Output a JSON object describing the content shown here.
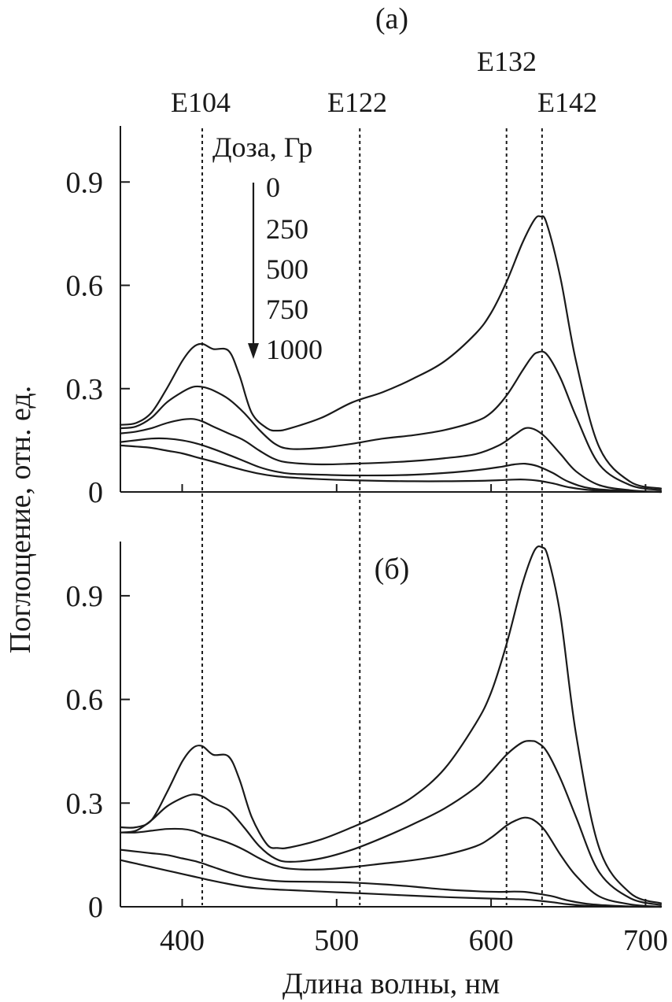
{
  "chart_data": {
    "type": "line",
    "ylabel": "Поглощение, отн. ед.",
    "xlabel": "Длина волны, нм",
    "xlim": [
      360,
      710
    ],
    "x_ticks": [
      400,
      500,
      600,
      700
    ],
    "x_tick_labels": [
      "400",
      "500",
      "600",
      "700"
    ],
    "reference_lines": [
      {
        "label": "E104",
        "x": 413
      },
      {
        "label": "E122",
        "x": 515
      },
      {
        "label": "E132",
        "x": 610
      },
      {
        "label": "E142",
        "x": 633
      }
    ],
    "legend": {
      "title": "Доза, Гр",
      "entries": [
        "0",
        "250",
        "500",
        "750",
        "1000"
      ]
    },
    "panels": [
      {
        "id": "a",
        "title": "(a)",
        "ylim": [
          0,
          1.05
        ],
        "y_ticks": [
          0,
          0.3,
          0.6,
          0.9
        ],
        "y_tick_labels": [
          "0",
          "0.3",
          "0.6",
          "0.9"
        ],
        "series": [
          {
            "name": "0",
            "x": [
              360,
              370,
              380,
              390,
              400,
              407,
              413,
              420,
              430,
              437,
              445,
              455,
              462,
              470,
              490,
              510,
              530,
              550,
              570,
              590,
              600,
              610,
              620,
              628,
              632,
              636,
              645,
              655,
              670,
              690,
              710
            ],
            "y": [
              0.195,
              0.2,
              0.23,
              0.3,
              0.38,
              0.42,
              0.43,
              0.415,
              0.41,
              0.34,
              0.23,
              0.185,
              0.178,
              0.185,
              0.215,
              0.26,
              0.29,
              0.33,
              0.38,
              0.46,
              0.52,
              0.61,
              0.72,
              0.79,
              0.8,
              0.78,
              0.62,
              0.38,
              0.13,
              0.03,
              0.01
            ]
          },
          {
            "name": "250",
            "x": [
              360,
              370,
              380,
              390,
              400,
              407,
              413,
              420,
              430,
              440,
              450,
              460,
              470,
              490,
              510,
              530,
              550,
              570,
              590,
              600,
              610,
              620,
              626,
              630,
              636,
              645,
              655,
              670,
              690,
              710
            ],
            "y": [
              0.185,
              0.19,
              0.215,
              0.26,
              0.29,
              0.305,
              0.305,
              0.295,
              0.27,
              0.23,
              0.18,
              0.14,
              0.125,
              0.128,
              0.14,
              0.155,
              0.165,
              0.18,
              0.205,
              0.23,
              0.28,
              0.35,
              0.39,
              0.405,
              0.4,
              0.33,
              0.22,
              0.08,
              0.02,
              0.005
            ]
          },
          {
            "name": "500",
            "x": [
              360,
              370,
              380,
              390,
              400,
              407,
              413,
              420,
              430,
              440,
              450,
              460,
              470,
              490,
              510,
              530,
              550,
              570,
              590,
              605,
              615,
              622,
              628,
              635,
              645,
              655,
              670,
              690,
              710
            ],
            "y": [
              0.17,
              0.175,
              0.185,
              0.2,
              0.21,
              0.212,
              0.205,
              0.19,
              0.17,
              0.15,
              0.12,
              0.095,
              0.085,
              0.08,
              0.082,
              0.085,
              0.09,
              0.098,
              0.11,
              0.135,
              0.165,
              0.185,
              0.182,
              0.16,
              0.11,
              0.06,
              0.02,
              0.005,
              0.0
            ]
          },
          {
            "name": "750",
            "x": [
              360,
              370,
              380,
              390,
              400,
              410,
              420,
              430,
              440,
              450,
              460,
              470,
              490,
              510,
              530,
              550,
              570,
              590,
              605,
              615,
              622,
              630,
              640,
              650,
              665,
              690,
              710
            ],
            "y": [
              0.145,
              0.15,
              0.155,
              0.155,
              0.15,
              0.14,
              0.125,
              0.108,
              0.09,
              0.072,
              0.06,
              0.053,
              0.05,
              0.048,
              0.048,
              0.05,
              0.055,
              0.063,
              0.072,
              0.08,
              0.082,
              0.075,
              0.055,
              0.03,
              0.01,
              0.003,
              0.0
            ]
          },
          {
            "name": "1000",
            "x": [
              360,
              370,
              380,
              390,
              400,
              410,
              420,
              430,
              440,
              450,
              460,
              470,
              490,
              510,
              530,
              550,
              570,
              590,
              605,
              615,
              622,
              630,
              640,
              650,
              665,
              690,
              710
            ],
            "y": [
              0.135,
              0.132,
              0.128,
              0.12,
              0.112,
              0.1,
              0.088,
              0.075,
              0.063,
              0.053,
              0.046,
              0.042,
              0.037,
              0.034,
              0.032,
              0.031,
              0.031,
              0.032,
              0.034,
              0.036,
              0.036,
              0.033,
              0.025,
              0.014,
              0.005,
              0.001,
              0.0
            ]
          }
        ]
      },
      {
        "id": "b",
        "title": "(б)",
        "ylim": [
          0,
          1.05
        ],
        "y_ticks": [
          0,
          0.3,
          0.6,
          0.9
        ],
        "y_tick_labels": [
          "0",
          "0.3",
          "0.6",
          "0.9"
        ],
        "series": [
          {
            "name": "0",
            "x": [
              360,
              370,
              380,
              390,
              400,
              407,
              413,
              420,
              430,
              437,
              445,
              455,
              462,
              470,
              490,
              510,
              530,
              550,
              570,
              590,
              600,
              610,
              620,
              628,
              633,
              637,
              645,
              655,
              670,
              690,
              710
            ],
            "y": [
              0.23,
              0.23,
              0.25,
              0.33,
              0.42,
              0.46,
              0.465,
              0.44,
              0.435,
              0.37,
              0.26,
              0.18,
              0.17,
              0.172,
              0.195,
              0.23,
              0.27,
              0.32,
              0.4,
              0.53,
              0.62,
              0.76,
              0.93,
              1.03,
              1.04,
              1.01,
              0.84,
              0.5,
              0.17,
              0.04,
              0.01
            ]
          },
          {
            "name": "250",
            "x": [
              360,
              370,
              380,
              390,
              400,
              407,
              413,
              420,
              430,
              440,
              450,
              460,
              470,
              490,
              510,
              530,
              550,
              570,
              590,
              600,
              610,
              620,
              626,
              630,
              636,
              645,
              655,
              670,
              690,
              710
            ],
            "y": [
              0.215,
              0.22,
              0.25,
              0.29,
              0.315,
              0.325,
              0.32,
              0.3,
              0.28,
              0.23,
              0.175,
              0.14,
              0.13,
              0.14,
              0.165,
              0.2,
              0.24,
              0.285,
              0.345,
              0.39,
              0.44,
              0.475,
              0.48,
              0.475,
              0.45,
              0.37,
              0.26,
              0.1,
              0.025,
              0.005
            ]
          },
          {
            "name": "500",
            "x": [
              360,
              370,
              380,
              390,
              400,
              407,
              413,
              420,
              430,
              440,
              450,
              460,
              470,
              490,
              510,
              530,
              550,
              570,
              590,
              600,
              610,
              616,
              622,
              628,
              635,
              645,
              655,
              670,
              690,
              710
            ],
            "y": [
              0.215,
              0.215,
              0.22,
              0.225,
              0.225,
              0.22,
              0.21,
              0.2,
              0.185,
              0.165,
              0.14,
              0.12,
              0.11,
              0.108,
              0.115,
              0.125,
              0.135,
              0.15,
              0.175,
              0.2,
              0.235,
              0.25,
              0.258,
              0.25,
              0.22,
              0.15,
              0.09,
              0.03,
              0.007,
              0.0
            ]
          },
          {
            "name": "750",
            "x": [
              360,
              370,
              380,
              390,
              400,
              410,
              420,
              430,
              440,
              450,
              460,
              470,
              490,
              510,
              530,
              550,
              570,
              590,
              605,
              615,
              622,
              630,
              640,
              650,
              665,
              690,
              710
            ],
            "y": [
              0.165,
              0.16,
              0.155,
              0.15,
              0.14,
              0.13,
              0.115,
              0.1,
              0.088,
              0.08,
              0.075,
              0.073,
              0.072,
              0.07,
              0.065,
              0.058,
              0.05,
              0.045,
              0.043,
              0.044,
              0.043,
              0.038,
              0.03,
              0.018,
              0.007,
              0.001,
              0.0
            ]
          },
          {
            "name": "1000",
            "x": [
              360,
              370,
              380,
              390,
              400,
              410,
              420,
              430,
              440,
              450,
              460,
              470,
              490,
              510,
              530,
              550,
              570,
              590,
              605,
              615,
              622,
              630,
              640,
              650,
              665,
              690,
              710
            ],
            "y": [
              0.135,
              0.125,
              0.115,
              0.105,
              0.095,
              0.085,
              0.075,
              0.066,
              0.058,
              0.053,
              0.05,
              0.048,
              0.044,
              0.04,
              0.036,
              0.032,
              0.028,
              0.025,
              0.023,
              0.022,
              0.021,
              0.018,
              0.013,
              0.007,
              0.002,
              0.0,
              0.0
            ]
          }
        ]
      }
    ]
  }
}
